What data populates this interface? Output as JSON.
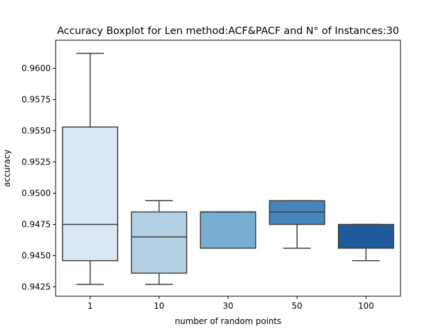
{
  "chart_data": {
    "type": "boxplot",
    "title": "Accuracy Boxplot for Len method:ACF&PACF and N° of Instances:30",
    "xlabel": "number of random points",
    "ylabel": "accuracy",
    "ylim": [
      0.94175,
      0.96225
    ],
    "yticks": [
      "0.9425",
      "0.9450",
      "0.9475",
      "0.9500",
      "0.9525",
      "0.9550",
      "0.9575",
      "0.9600"
    ],
    "grid": false,
    "categories": [
      "1",
      "10",
      "30",
      "50",
      "100"
    ],
    "boxes": [
      {
        "category": "1",
        "whisker_low": 0.9427,
        "q1": 0.9446,
        "median": 0.9475,
        "q3": 0.9553,
        "whisker_high": 0.9612,
        "color": "#dae7f4"
      },
      {
        "category": "10",
        "whisker_low": 0.9427,
        "q1": 0.9436,
        "median": 0.9465,
        "q3": 0.9485,
        "whisker_high": 0.9494,
        "color": "#b4d0e4"
      },
      {
        "category": "30",
        "whisker_low": 0.9456,
        "q1": 0.9456,
        "median": 0.9485,
        "q3": 0.9485,
        "whisker_high": 0.9485,
        "color": "#78aed3"
      },
      {
        "category": "50",
        "whisker_low": 0.9456,
        "q1": 0.9475,
        "median": 0.9485,
        "q3": 0.9494,
        "whisker_high": 0.9494,
        "color": "#4686bc"
      },
      {
        "category": "100",
        "whisker_low": 0.9446,
        "q1": 0.9456,
        "median": 0.9456,
        "q3": 0.9475,
        "whisker_high": 0.9475,
        "color": "#1f5b9a"
      }
    ]
  }
}
